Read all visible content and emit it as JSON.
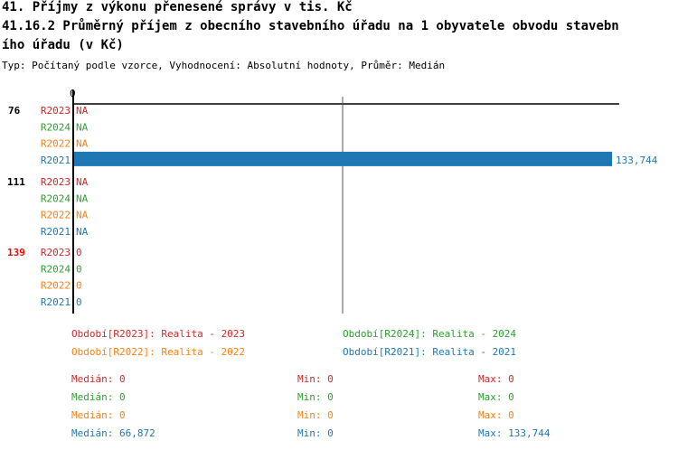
{
  "title1": "41. Příjmy z výkonu přenesené správy v tis. Kč",
  "title2a": "41.16.2 Průměrný příjem z obecního stavebního úřadu na 1 obyvatele obvodu stavebn",
  "title2b": "ího úřadu (v Kč)",
  "subtitle": "Typ: Počítaný podle vzorce, Vyhodnocení: Absolutní hodnoty, Průměr: Medián",
  "colors": {
    "R2023": "#d62728",
    "R2024": "#2ca02c",
    "R2022": "#ff7f0e",
    "R2021": "#1f77b4"
  },
  "chart_data": {
    "type": "bar",
    "orientation": "horizontal",
    "xlim": [
      0,
      134400
    ],
    "x_tick_labels": [
      "0"
    ],
    "reference_line": "median",
    "groups": [
      {
        "label": "76",
        "label_color": "#000000",
        "rows": [
          {
            "period": "R2023",
            "value": null,
            "text": "NA"
          },
          {
            "period": "R2024",
            "value": null,
            "text": "NA"
          },
          {
            "period": "R2022",
            "value": null,
            "text": "NA"
          },
          {
            "period": "R2021",
            "value": 133744,
            "text": "133,744"
          }
        ]
      },
      {
        "label": "111",
        "label_color": "#000000",
        "rows": [
          {
            "period": "R2023",
            "value": null,
            "text": "NA"
          },
          {
            "period": "R2024",
            "value": null,
            "text": "NA"
          },
          {
            "period": "R2022",
            "value": null,
            "text": "NA"
          },
          {
            "period": "R2021",
            "value": null,
            "text": "NA"
          }
        ]
      },
      {
        "label": "139",
        "label_color": "#ff0000",
        "rows": [
          {
            "period": "R2023",
            "value": 0,
            "text": "0"
          },
          {
            "period": "R2024",
            "value": 0,
            "text": "0"
          },
          {
            "period": "R2022",
            "value": 0,
            "text": "0"
          },
          {
            "period": "R2021",
            "value": 0,
            "text": "0"
          }
        ]
      }
    ]
  },
  "legend": [
    {
      "period": "R2023",
      "text": "Období[R2023]: Realita - 2023"
    },
    {
      "period": "R2024",
      "text": "Období[R2024]: Realita - 2024"
    },
    {
      "period": "R2022",
      "text": "Období[R2022]: Realita - 2022"
    },
    {
      "period": "R2021",
      "text": "Období[R2021]: Realita - 2021"
    }
  ],
  "stats": [
    {
      "period": "R2023",
      "median": "Medián: 0",
      "min": "Min: 0",
      "max": "Max: 0"
    },
    {
      "period": "R2024",
      "median": "Medián: 0",
      "min": "Min: 0",
      "max": "Max: 0"
    },
    {
      "period": "R2022",
      "median": "Medián: 0",
      "min": "Min: 0",
      "max": "Max: 0"
    },
    {
      "period": "R2021",
      "median": "Medián: 66,872",
      "min": "Min: 0",
      "max": "Max: 133,744"
    }
  ]
}
